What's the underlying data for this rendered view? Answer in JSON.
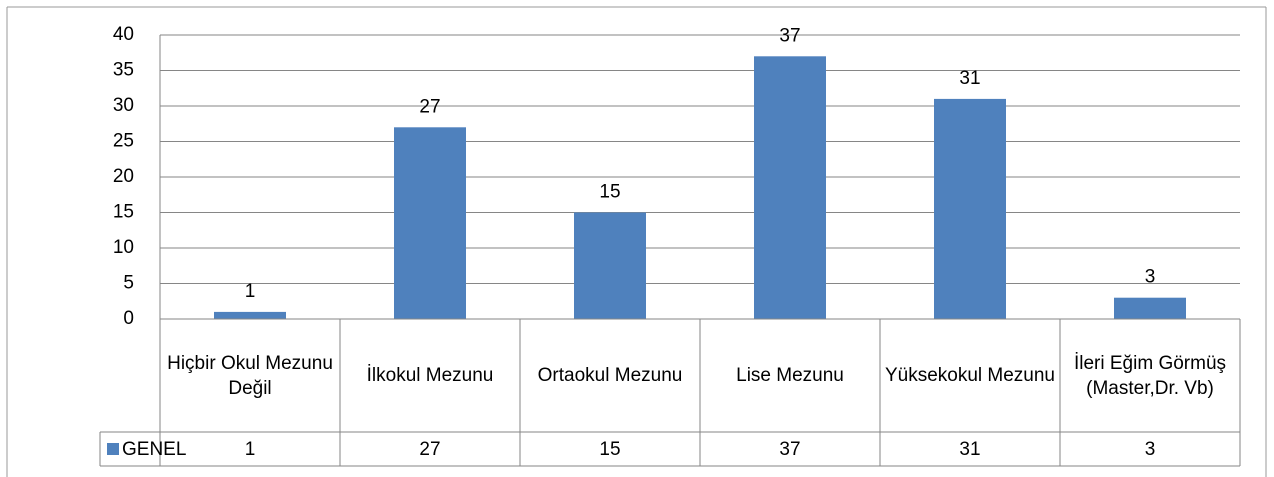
{
  "chart_data": {
    "type": "bar",
    "categories": [
      "Hiçbir Okul Mezunu Değil",
      "İlkokul Mezunu",
      "Ortaokul Mezunu",
      "Lise Mezunu",
      "Yüksekokul Mezunu",
      "İleri Eğim Görmüş (Master,Dr. Vb)"
    ],
    "series": [
      {
        "name": "GENEL",
        "color": "#4f81bd",
        "values": [
          1,
          27,
          15,
          37,
          31,
          3
        ]
      }
    ],
    "ylim": [
      0,
      40
    ],
    "yticks": [
      0,
      5,
      10,
      15,
      20,
      25,
      30,
      35,
      40
    ],
    "grid": true,
    "data_table": true
  }
}
